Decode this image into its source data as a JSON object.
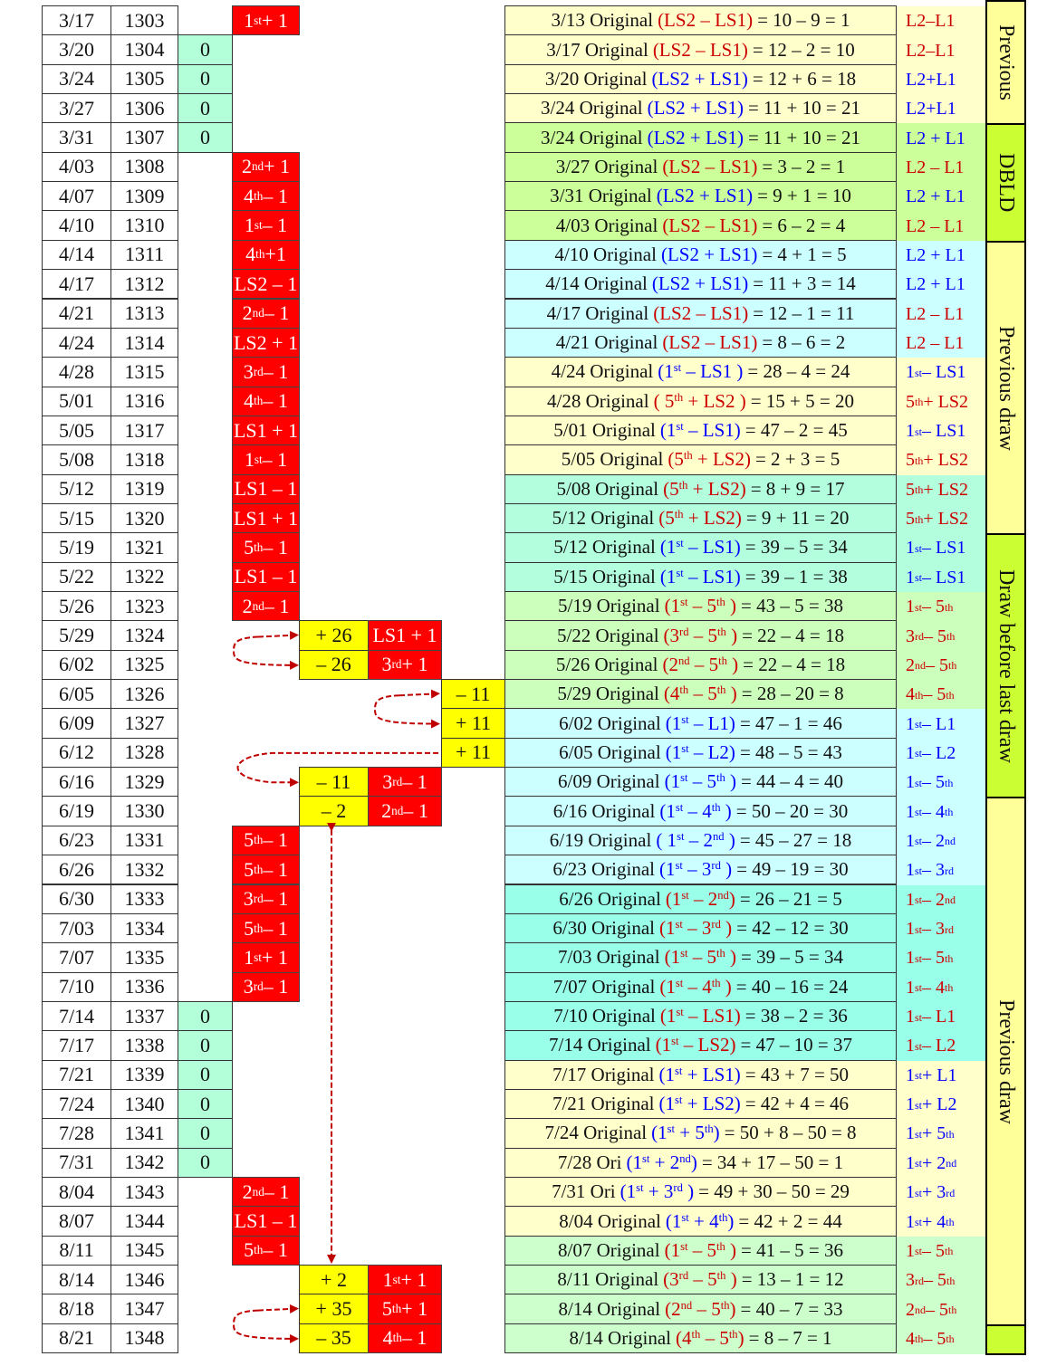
{
  "colors": {
    "red_expr": "#cc0000",
    "blue_expr": "#0000ff",
    "change_cell": "#ff0000",
    "offset_cell": "#ffff00",
    "zero_cell": "#b3ffd9",
    "arrow": "#c00000"
  },
  "row_groups": [
    {
      "rows": [
        0,
        3
      ],
      "color": "#ffffcc"
    },
    {
      "rows": [
        4,
        7
      ],
      "color": "#ccff99"
    },
    {
      "rows": [
        8,
        11
      ],
      "color": "#ccffff"
    },
    {
      "rows": [
        12,
        15
      ],
      "color": "#ffffcc"
    },
    {
      "rows": [
        16,
        19
      ],
      "color": "#b3ffdd"
    },
    {
      "rows": [
        20,
        23
      ],
      "color": "#ccffbb"
    },
    {
      "rows": [
        24,
        29
      ],
      "color": "#ccffff"
    },
    {
      "rows": [
        30,
        35
      ],
      "color": "#99ffe8"
    },
    {
      "rows": [
        36,
        41
      ],
      "color": "#ffffcc"
    },
    {
      "rows": [
        42,
        45
      ],
      "color": "#ccffcc"
    }
  ],
  "side_bands": [
    {
      "label": "Previous",
      "rows": [
        0,
        3
      ],
      "color": "#ffff99"
    },
    {
      "label": "DBLD",
      "rows": [
        4,
        7
      ],
      "color": "#ccff33"
    },
    {
      "label": "Previous draw",
      "rows": [
        8,
        17
      ],
      "color": "#ffff99"
    },
    {
      "label": "Draw before last draw",
      "rows": [
        18,
        26
      ],
      "color": "#ccff33"
    },
    {
      "label": "Previous draw",
      "rows": [
        27,
        44
      ],
      "color": "#ffff99"
    },
    {
      "label": "",
      "rows": [
        45,
        45
      ],
      "color": "#ccff33"
    }
  ],
  "rows": [
    {
      "date": "3/17",
      "draw": "1303",
      "zero": "",
      "change1": "1^{st} + 1",
      "offset1": "",
      "change2": "",
      "offset2": "",
      "f_prefix": "3/13 Original",
      "f_expr": "(LS2 – LS1)",
      "f_color": "red",
      "f_result": "= 10 – 9 = 1",
      "label": "L2–L1",
      "label_color": "red"
    },
    {
      "date": "3/20",
      "draw": "1304",
      "zero": "0",
      "change1": "",
      "offset1": "",
      "change2": "",
      "offset2": "",
      "f_prefix": "3/17 Original",
      "f_expr": "(LS2 – LS1)",
      "f_color": "red",
      "f_result": "= 12 – 2 = 10",
      "label": "L2–L1",
      "label_color": "red"
    },
    {
      "date": "3/24",
      "draw": "1305",
      "zero": "0",
      "change1": "",
      "offset1": "",
      "change2": "",
      "offset2": "",
      "f_prefix": "3/20 Original",
      "f_expr": "(LS2 + LS1)",
      "f_color": "blue",
      "f_result": "= 12 + 6 = 18",
      "label": "L2+L1",
      "label_color": "blue"
    },
    {
      "date": "3/27",
      "draw": "1306",
      "zero": "0",
      "change1": "",
      "offset1": "",
      "change2": "",
      "offset2": "",
      "f_prefix": "3/24 Original",
      "f_expr": "(LS2 + LS1)",
      "f_color": "blue",
      "f_result": "= 11 + 10 = 21",
      "label": "L2+L1",
      "label_color": "blue"
    },
    {
      "date": "3/31",
      "draw": "1307",
      "zero": "0",
      "change1": "",
      "offset1": "",
      "change2": "",
      "offset2": "",
      "f_prefix": "3/24 Original",
      "f_expr": "(LS2 + LS1)",
      "f_color": "blue",
      "f_result": "= 11 + 10 = 21",
      "label": "L2 + L1",
      "label_color": "blue"
    },
    {
      "date": "4/03",
      "draw": "1308",
      "zero": "",
      "change1": "2^{nd} + 1",
      "offset1": "",
      "change2": "",
      "offset2": "",
      "f_prefix": "3/27 Original",
      "f_expr": "(LS2 – LS1)",
      "f_color": "red",
      "f_result": "= 3 – 2 = 1",
      "label": "L2 – L1",
      "label_color": "red"
    },
    {
      "date": "4/07",
      "draw": "1309",
      "zero": "",
      "change1": "4^{th} – 1",
      "offset1": "",
      "change2": "",
      "offset2": "",
      "f_prefix": "3/31 Original",
      "f_expr": "(LS2 + LS1)",
      "f_color": "blue",
      "f_result": "= 9 + 1 = 10",
      "label": "L2 + L1",
      "label_color": "blue"
    },
    {
      "date": "4/10",
      "draw": "1310",
      "zero": "",
      "change1": "1^{st} – 1",
      "offset1": "",
      "change2": "",
      "offset2": "",
      "f_prefix": "4/03 Original",
      "f_expr": "(LS2 – LS1)",
      "f_color": "red",
      "f_result": "= 6 – 2 = 4",
      "label": "L2 – L1",
      "label_color": "red"
    },
    {
      "date": "4/14",
      "draw": "1311",
      "zero": "",
      "change1": "4^{th} +1",
      "offset1": "",
      "change2": "",
      "offset2": "",
      "f_prefix": "4/10 Original",
      "f_expr": "(LS2 + LS1)",
      "f_color": "blue",
      "f_result": "= 4 + 1 = 5",
      "label": "L2 + L1",
      "label_color": "blue"
    },
    {
      "date": "4/17",
      "draw": "1312",
      "zero": "",
      "change1": "LS2 – 1",
      "offset1": "",
      "change2": "",
      "offset2": "",
      "f_prefix": "4/14 Original",
      "f_expr": "(LS2 + LS1)",
      "f_color": "blue",
      "f_result": "= 11 + 3 = 14",
      "label": "L2 + L1",
      "label_color": "blue"
    },
    {
      "date": "4/21",
      "draw": "1313",
      "zero": "",
      "change1": "2^{nd} – 1",
      "offset1": "",
      "change2": "",
      "offset2": "",
      "f_prefix": "4/17 Original",
      "f_expr": "(LS2 – LS1)",
      "f_color": "red",
      "f_result": "= 12 – 1 = 11",
      "label": "L2 – L1",
      "label_color": "red"
    },
    {
      "date": "4/24",
      "draw": "1314",
      "zero": "",
      "change1": "LS2 + 1",
      "offset1": "",
      "change2": "",
      "offset2": "",
      "f_prefix": "4/21 Original",
      "f_expr": "(LS2 – LS1)",
      "f_color": "red",
      "f_result": "= 8 – 6 = 2",
      "label": "L2 – L1",
      "label_color": "red"
    },
    {
      "date": "4/28",
      "draw": "1315",
      "zero": "",
      "change1": "3^{rd} – 1",
      "offset1": "",
      "change2": "",
      "offset2": "",
      "f_prefix": "4/24 Original",
      "f_expr": "(1^{st} – LS1 )",
      "f_color": "blue",
      "f_result": "= 28 – 4 = 24",
      "label": "1^{st} – LS1",
      "label_color": "blue"
    },
    {
      "date": "5/01",
      "draw": "1316",
      "zero": "",
      "change1": "4^{th} – 1",
      "offset1": "",
      "change2": "",
      "offset2": "",
      "f_prefix": "4/28 Original",
      "f_expr": "( 5^{th} + LS2 )",
      "f_color": "red",
      "f_result": "= 15 + 5 = 20",
      "label": "5^{th} + LS2",
      "label_color": "red"
    },
    {
      "date": "5/05",
      "draw": "1317",
      "zero": "",
      "change1": "LS1 + 1",
      "offset1": "",
      "change2": "",
      "offset2": "",
      "f_prefix": "5/01 Original",
      "f_expr": "(1^{st} – LS1)",
      "f_color": "blue",
      "f_result": "= 47 – 2 = 45",
      "label": "1^{st} – LS1",
      "label_color": "blue"
    },
    {
      "date": "5/08",
      "draw": "1318",
      "zero": "",
      "change1": "1^{st} – 1",
      "offset1": "",
      "change2": "",
      "offset2": "",
      "f_prefix": "5/05 Original",
      "f_expr": "(5^{th} + LS2)",
      "f_color": "red",
      "f_result": "= 2 + 3 = 5",
      "label": "5^{th} + LS2",
      "label_color": "red"
    },
    {
      "date": "5/12",
      "draw": "1319",
      "zero": "",
      "change1": "LS1 – 1",
      "offset1": "",
      "change2": "",
      "offset2": "",
      "f_prefix": "5/08 Original",
      "f_expr": "(5^{th} + LS2)",
      "f_color": "red",
      "f_result": "= 8 + 9 = 17",
      "label": "5^{th} + LS2",
      "label_color": "red"
    },
    {
      "date": "5/15",
      "draw": "1320",
      "zero": "",
      "change1": "LS1 + 1",
      "offset1": "",
      "change2": "",
      "offset2": "",
      "f_prefix": "5/12 Original",
      "f_expr": "(5^{th} + LS2)",
      "f_color": "red",
      "f_result": "= 9 + 11 = 20",
      "label": "5^{th} + LS2",
      "label_color": "red"
    },
    {
      "date": "5/19",
      "draw": "1321",
      "zero": "",
      "change1": "5^{th} – 1",
      "offset1": "",
      "change2": "",
      "offset2": "",
      "f_prefix": "5/12 Original",
      "f_expr": "(1^{st} – LS1)",
      "f_color": "blue",
      "f_result": "= 39 – 5 = 34",
      "label": "1^{st} – LS1",
      "label_color": "blue"
    },
    {
      "date": "5/22",
      "draw": "1322",
      "zero": "",
      "change1": "LS1 – 1",
      "offset1": "",
      "change2": "",
      "offset2": "",
      "f_prefix": "5/15 Original",
      "f_expr": "(1^{st} – LS1)",
      "f_color": "blue",
      "f_result": "= 39 – 1 = 38",
      "label": "1^{st} – LS1",
      "label_color": "blue"
    },
    {
      "date": "5/26",
      "draw": "1323",
      "zero": "",
      "change1": "2^{nd} – 1",
      "offset1": "",
      "change2": "",
      "offset2": "",
      "f_prefix": "5/19 Original",
      "f_expr": "(1^{st} – 5^{th} )",
      "f_color": "red",
      "f_result": "= 43 – 5 = 38",
      "label": "1^{st} – 5^{th}",
      "label_color": "red"
    },
    {
      "date": "5/29",
      "draw": "1324",
      "zero": "",
      "change1": "",
      "offset1": "+ 26",
      "change2": "LS1 + 1",
      "offset2": "",
      "f_prefix": "5/22 Original",
      "f_expr": "(3^{rd} – 5^{th} )",
      "f_color": "red",
      "f_result": "= 22 – 4 = 18",
      "label": "3^{rd} – 5^{th}",
      "label_color": "red"
    },
    {
      "date": "6/02",
      "draw": "1325",
      "zero": "",
      "change1": "",
      "offset1": "– 26",
      "change2": "3^{rd} + 1",
      "offset2": "",
      "f_prefix": "5/26 Original",
      "f_expr": "(2^{nd} – 5^{th} )",
      "f_color": "red",
      "f_result": "= 22 – 4 = 18",
      "label": "2^{nd} – 5^{th}",
      "label_color": "red"
    },
    {
      "date": "6/05",
      "draw": "1326",
      "zero": "",
      "change1": "",
      "offset1": "",
      "change2": "",
      "offset2": "– 11",
      "f_prefix": "5/29 Original",
      "f_expr": "(4^{th} – 5^{th} )",
      "f_color": "red",
      "f_result": "= 28 – 20 = 8",
      "label": "4^{th} – 5^{th}",
      "label_color": "red"
    },
    {
      "date": "6/09",
      "draw": "1327",
      "zero": "",
      "change1": "",
      "offset1": "",
      "change2": "",
      "offset2": "+ 11",
      "f_prefix": "6/02 Original",
      "f_expr": "(1^{st} – L1)",
      "f_color": "blue",
      "f_result": "= 47 – 1 = 46",
      "label": "1^{st} – L1",
      "label_color": "blue"
    },
    {
      "date": "6/12",
      "draw": "1328",
      "zero": "",
      "change1": "",
      "offset1": "",
      "change2": "",
      "offset2": "+ 11",
      "f_prefix": "6/05 Original",
      "f_expr": "(1^{st} – L2)",
      "f_color": "blue",
      "f_result": "= 48 – 5 = 43",
      "label": "1^{st} – L2",
      "label_color": "blue"
    },
    {
      "date": "6/16",
      "draw": "1329",
      "zero": "",
      "change1": "",
      "offset1": "– 11",
      "change2": "3^{rd} – 1",
      "offset2": "",
      "f_prefix": "6/09 Original",
      "f_expr": "(1^{st} – 5^{th} )",
      "f_color": "blue",
      "f_result": "= 44 – 4 = 40",
      "label": "1^{st} – 5^{th}",
      "label_color": "blue"
    },
    {
      "date": "6/19",
      "draw": "1330",
      "zero": "",
      "change1": "",
      "offset1": "– 2",
      "change2": "2^{nd} – 1",
      "offset2": "",
      "f_prefix": "6/16 Original",
      "f_expr": "(1^{st} – 4^{th} )",
      "f_color": "blue",
      "f_result": "= 50 – 20 = 30",
      "label": "1^{st} – 4^{th}",
      "label_color": "blue"
    },
    {
      "date": "6/23",
      "draw": "1331",
      "zero": "",
      "change1": "5^{th} – 1",
      "offset1": "",
      "change2": "",
      "offset2": "",
      "f_prefix": "6/19 Original",
      "f_expr": "( 1^{st} – 2^{nd} )",
      "f_color": "blue",
      "f_result": "= 45 – 27 = 18",
      "label": "1^{st} – 2^{nd}",
      "label_color": "blue"
    },
    {
      "date": "6/26",
      "draw": "1332",
      "zero": "",
      "change1": "5^{th} – 1",
      "offset1": "",
      "change2": "",
      "offset2": "",
      "f_prefix": "6/23 Original",
      "f_expr": "(1^{st} – 3^{rd} )",
      "f_color": "blue",
      "f_result": "= 49 – 19 = 30",
      "label": "1^{st} – 3^{rd}",
      "label_color": "blue"
    },
    {
      "date": "6/30",
      "draw": "1333",
      "zero": "",
      "change1": "3^{rd} – 1",
      "offset1": "",
      "change2": "",
      "offset2": "",
      "f_prefix": "6/26 Original",
      "f_expr": "(1^{st} – 2^{nd})",
      "f_color": "red",
      "f_result": "= 26 – 21 = 5",
      "label": "1^{st} – 2^{nd}",
      "label_color": "red"
    },
    {
      "date": "7/03",
      "draw": "1334",
      "zero": "",
      "change1": "5^{th} – 1",
      "offset1": "",
      "change2": "",
      "offset2": "",
      "f_prefix": "6/30 Original",
      "f_expr": "(1^{st} – 3^{rd} )",
      "f_color": "red",
      "f_result": "= 42 – 12 = 30",
      "label": "1^{st} – 3^{rd}",
      "label_color": "red"
    },
    {
      "date": "7/07",
      "draw": "1335",
      "zero": "",
      "change1": "1^{st} + 1",
      "offset1": "",
      "change2": "",
      "offset2": "",
      "f_prefix": "7/03 Original",
      "f_expr": "(1^{st} –  5^{th} )",
      "f_color": "red",
      "f_result": "= 39 – 5 = 34",
      "label": "1^{st} – 5^{th}",
      "label_color": "red"
    },
    {
      "date": "7/10",
      "draw": "1336",
      "zero": "",
      "change1": "3^{rd} – 1",
      "offset1": "",
      "change2": "",
      "offset2": "",
      "f_prefix": "7/07 Original",
      "f_expr": "(1^{st} –  4^{th} )",
      "f_color": "red",
      "f_result": "= 40 – 16 = 24",
      "label": "1^{st} – 4^{th}",
      "label_color": "red"
    },
    {
      "date": "7/14",
      "draw": "1337",
      "zero": "0",
      "change1": "",
      "offset1": "",
      "change2": "",
      "offset2": "",
      "f_prefix": "7/10 Original",
      "f_expr": "(1^{st} –  LS1)",
      "f_color": "red",
      "f_result": "= 38 – 2 = 36",
      "label": "1^{st} – L1",
      "label_color": "red"
    },
    {
      "date": "7/17",
      "draw": "1338",
      "zero": "0",
      "change1": "",
      "offset1": "",
      "change2": "",
      "offset2": "",
      "f_prefix": "7/14 Original",
      "f_expr": "(1^{st} –  LS2)",
      "f_color": "red",
      "f_result": "= 47 – 10 = 37",
      "label": "1^{st} – L2",
      "label_color": "red"
    },
    {
      "date": "7/21",
      "draw": "1339",
      "zero": "0",
      "change1": "",
      "offset1": "",
      "change2": "",
      "offset2": "",
      "f_prefix": "7/17 Original",
      "f_expr": "(1^{st} + LS1)",
      "f_color": "blue",
      "f_result": "= 43 + 7 = 50",
      "label": "1^{st} + L1",
      "label_color": "blue"
    },
    {
      "date": "7/24",
      "draw": "1340",
      "zero": "0",
      "change1": "",
      "offset1": "",
      "change2": "",
      "offset2": "",
      "f_prefix": "7/21 Original",
      "f_expr": "(1^{st} + LS2)",
      "f_color": "blue",
      "f_result": "= 42 + 4 = 46",
      "label": "1^{st} + L2",
      "label_color": "blue"
    },
    {
      "date": "7/28",
      "draw": "1341",
      "zero": "0",
      "change1": "",
      "offset1": "",
      "change2": "",
      "offset2": "",
      "f_prefix": "7/24 Original",
      "f_expr": "(1^{st} + 5^{th})",
      "f_color": "blue",
      "f_result": "= 50 + 8 – 50 = 8",
      "label": "1^{st} + 5^{th}",
      "label_color": "blue"
    },
    {
      "date": "7/31",
      "draw": "1342",
      "zero": "0",
      "change1": "",
      "offset1": "",
      "change2": "",
      "offset2": "",
      "f_prefix": "7/28  Ori",
      "f_expr": "(1^{st} + 2^{nd})",
      "f_color": "blue",
      "f_result": "= 34 + 17 – 50 = 1",
      "label": "1^{st} + 2^{nd}",
      "label_color": "blue"
    },
    {
      "date": "8/04",
      "draw": "1343",
      "zero": "",
      "change1": "2^{nd} – 1",
      "offset1": "",
      "change2": "",
      "offset2": "",
      "f_prefix": "7/31  Ori",
      "f_expr": "(1^{st} + 3^{rd} )",
      "f_color": "blue",
      "f_result": "= 49 + 30 – 50 = 29",
      "label": "1^{st} + 3^{rd}",
      "label_color": "blue"
    },
    {
      "date": "8/07",
      "draw": "1344",
      "zero": "",
      "change1": "LS1 – 1",
      "offset1": "",
      "change2": "",
      "offset2": "",
      "f_prefix": "8/04 Original",
      "f_expr": "(1^{st} + 4^{th})",
      "f_color": "blue",
      "f_result": "= 42 + 2 = 44",
      "label": "1^{st} + 4^{th}",
      "label_color": "blue"
    },
    {
      "date": "8/11",
      "draw": "1345",
      "zero": "",
      "change1": "5^{th} – 1",
      "offset1": "",
      "change2": "",
      "offset2": "",
      "f_prefix": "8/07 Original",
      "f_expr": "(1^{st} – 5^{th} )",
      "f_color": "red",
      "f_result": "= 41 – 5 = 36",
      "label": "1^{st} – 5^{th}",
      "label_color": "red"
    },
    {
      "date": "8/14",
      "draw": "1346",
      "zero": "",
      "change1": "",
      "offset1": "+ 2",
      "change2": "1^{st} + 1",
      "offset2": "",
      "f_prefix": "8/11 Original",
      "f_expr": "(3^{rd} – 5^{th} )",
      "f_color": "red",
      "f_result": "= 13 – 1 = 12",
      "label": "3^{rd} – 5^{th}",
      "label_color": "red"
    },
    {
      "date": "8/18",
      "draw": "1347",
      "zero": "",
      "change1": "",
      "offset1": "+ 35",
      "change2": "5^{th} + 1",
      "offset2": "",
      "f_prefix": "8/14 Original",
      "f_expr": "(2^{nd} – 5^{th})",
      "f_color": "red",
      "f_result": "= 40 – 7 = 33",
      "label": "2^{nd} – 5^{th}",
      "label_color": "red"
    },
    {
      "date": "8/21",
      "draw": "1348",
      "zero": "",
      "change1": "",
      "offset1": "– 35",
      "change2": "4^{th} – 1",
      "offset2": "",
      "f_prefix": "8/14 Original",
      "f_expr": "(4^{th} – 5^{th})",
      "f_color": "red",
      "f_result": "= 8 – 7 = 1",
      "label": "4^{th} – 5^{th}",
      "label_color": "red"
    }
  ]
}
